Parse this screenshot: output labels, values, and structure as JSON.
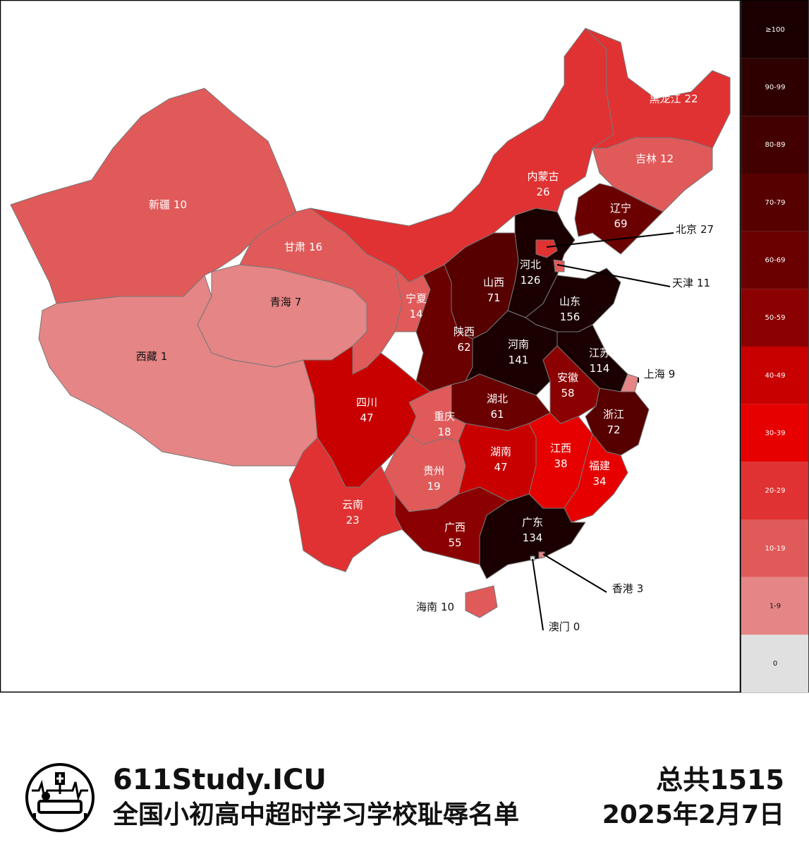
{
  "chart_data": {
    "type": "choropleth",
    "regions": [
      {
        "name": "新疆",
        "value": 10,
        "color": "#e05a5a"
      },
      {
        "name": "西藏",
        "value": 1,
        "color": "#e58585"
      },
      {
        "name": "青海",
        "value": 7,
        "color": "#e58585"
      },
      {
        "name": "甘肃",
        "value": 16,
        "color": "#e05a5a"
      },
      {
        "name": "内蒙古",
        "value": 26,
        "color": "#e03232"
      },
      {
        "name": "黑龙江",
        "value": 22,
        "color": "#e03232"
      },
      {
        "name": "吉林",
        "value": 12,
        "color": "#e05a5a"
      },
      {
        "name": "辽宁",
        "value": 69,
        "color": "#6b0000"
      },
      {
        "name": "宁夏",
        "value": 14,
        "color": "#e05a5a"
      },
      {
        "name": "陕西",
        "value": 62,
        "color": "#6b0000"
      },
      {
        "name": "山西",
        "value": 71,
        "color": "#560000"
      },
      {
        "name": "河北",
        "value": 126,
        "color": "#1a0000"
      },
      {
        "name": "北京",
        "value": 27,
        "color": "#e03232"
      },
      {
        "name": "天津",
        "value": 11,
        "color": "#e05a5a"
      },
      {
        "name": "山东",
        "value": 156,
        "color": "#1a0000"
      },
      {
        "name": "河南",
        "value": 141,
        "color": "#1a0000"
      },
      {
        "name": "江苏",
        "value": 114,
        "color": "#1a0000"
      },
      {
        "name": "上海",
        "value": 9,
        "color": "#e58585"
      },
      {
        "name": "安徽",
        "value": 58,
        "color": "#8b0000"
      },
      {
        "name": "浙江",
        "value": 72,
        "color": "#560000"
      },
      {
        "name": "湖北",
        "value": 61,
        "color": "#6b0000"
      },
      {
        "name": "重庆",
        "value": 18,
        "color": "#e05a5a"
      },
      {
        "name": "四川",
        "value": 47,
        "color": "#c80000"
      },
      {
        "name": "贵州",
        "value": 19,
        "color": "#e05a5a"
      },
      {
        "name": "湖南",
        "value": 47,
        "color": "#c80000"
      },
      {
        "name": "江西",
        "value": 38,
        "color": "#e60000"
      },
      {
        "name": "福建",
        "value": 34,
        "color": "#e60000"
      },
      {
        "name": "广东",
        "value": 134,
        "color": "#1a0000"
      },
      {
        "name": "广西",
        "value": 55,
        "color": "#8b0000"
      },
      {
        "name": "云南",
        "value": 23,
        "color": "#e03232"
      },
      {
        "name": "海南",
        "value": 10,
        "color": "#e05a5a"
      },
      {
        "name": "香港",
        "value": 3,
        "color": "#e58585"
      },
      {
        "name": "澳门",
        "value": 0,
        "color": "#e0e0e0"
      }
    ],
    "legend": [
      {
        "label": "≥100",
        "color": "#1a0000"
      },
      {
        "label": "90-99",
        "color": "#2e0000"
      },
      {
        "label": "80-89",
        "color": "#420000"
      },
      {
        "label": "70-79",
        "color": "#560000"
      },
      {
        "label": "60-69",
        "color": "#6b0000"
      },
      {
        "label": "50-59",
        "color": "#8b0000"
      },
      {
        "label": "40-49",
        "color": "#c80000"
      },
      {
        "label": "30-39",
        "color": "#e60000"
      },
      {
        "label": "20-29",
        "color": "#e03232"
      },
      {
        "label": "10-19",
        "color": "#e05a5a"
      },
      {
        "label": "1-9",
        "color": "#e58585"
      },
      {
        "label": "0",
        "color": "#e0e0e0"
      }
    ]
  },
  "footer": {
    "site": "611Study.ICU",
    "subtitle": "全国小初高中超时学习学校耻辱名单",
    "total": "总共1515",
    "date": "2025年2月7日"
  }
}
